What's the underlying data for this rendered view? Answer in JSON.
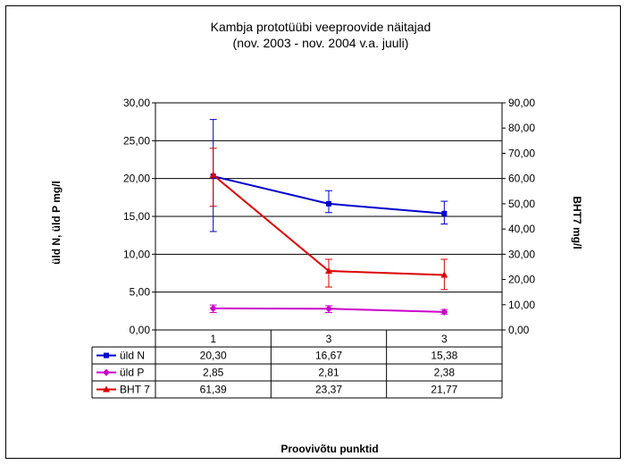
{
  "chart_data": {
    "type": "line",
    "title": "Kambja prototüübi veeproovide näitajad",
    "subtitle": "(nov. 2003 - nov. 2004 v.a. juuli)",
    "xlabel": "Proovivõtu punktid",
    "ylabel": "üld N, üld P mg/l",
    "y2label": "BHT7 mg/l",
    "categories": [
      "1",
      "3",
      "3"
    ],
    "ylim": [
      0,
      30
    ],
    "y2lim": [
      0,
      90
    ],
    "yticks": [
      "0,00",
      "5,00",
      "10,00",
      "15,00",
      "20,00",
      "25,00",
      "30,00"
    ],
    "y2ticks": [
      "0,00",
      "10,00",
      "20,00",
      "30,00",
      "40,00",
      "50,00",
      "60,00",
      "70,00",
      "80,00",
      "90,00"
    ],
    "grid": true,
    "series": [
      {
        "name": "üld N",
        "axis": "left",
        "color": "#0000cc",
        "marker": "square",
        "values": [
          20.3,
          16.67,
          15.38
        ],
        "labels": [
          "20,30",
          "16,67",
          "15,38"
        ],
        "error_low": [
          13.0,
          15.5,
          14.0
        ],
        "error_high": [
          27.8,
          18.4,
          17.0
        ]
      },
      {
        "name": "üld P",
        "axis": "left",
        "color": "#cc00cc",
        "marker": "diamond",
        "values": [
          2.85,
          2.81,
          2.38
        ],
        "labels": [
          "2,85",
          "2,81",
          "2,38"
        ],
        "error_low": [
          2.3,
          2.3,
          2.1
        ],
        "error_high": [
          3.3,
          3.2,
          2.7
        ]
      },
      {
        "name": "BHT 7",
        "axis": "right",
        "color": "#dd0000",
        "marker": "triangle",
        "values": [
          61.39,
          23.37,
          21.77
        ],
        "labels": [
          "61,39",
          "23,37",
          "21,77"
        ],
        "error_low": [
          49.0,
          17.0,
          16.0
        ],
        "error_high": [
          72.0,
          28.0,
          28.0
        ]
      }
    ]
  }
}
